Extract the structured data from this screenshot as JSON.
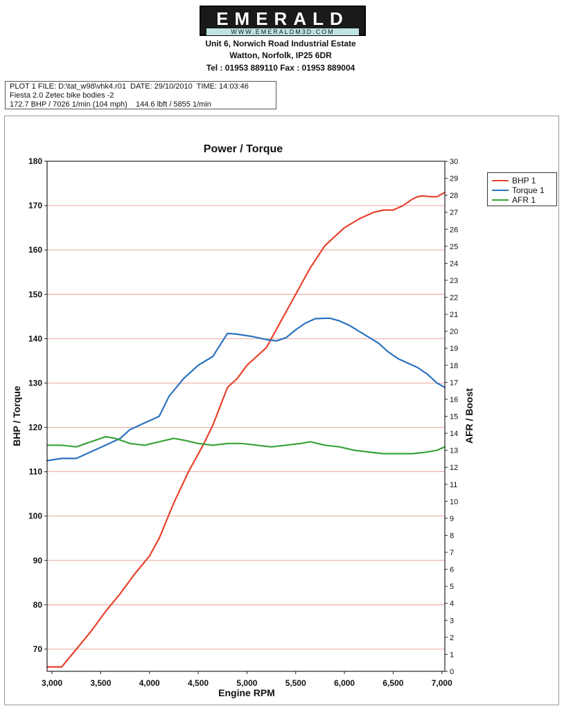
{
  "header": {
    "logo_name": "EMERALD",
    "logo_url": "WWW.EMERALDM3D.COM",
    "address_line1": "Unit 6, Norwich Road Industrial Estate",
    "address_line2": "Watton, Norfolk, IP25 6DR",
    "address_line3": "Tel : 01953 889110   Fax : 01953 889004"
  },
  "plot_info": {
    "line1": "PLOT 1 FILE: D:\\tat_w98\\vhk4.r01  DATE: 29/10/2010  TIME: 14:03:46",
    "line2": "Fiesta 2.0 Zetec bike bodies -2",
    "line3": "172.7 BHP / 7026 1/min (104 mph)    144.6 lbft / 5855 1/min"
  },
  "chart_data": {
    "type": "line",
    "title": "Power / Torque",
    "xlabel": "Engine RPM",
    "ylabel": "BHP / Torque",
    "y2label": "AFR / Boost",
    "xlim": [
      2950,
      7030
    ],
    "ylim": [
      65,
      180
    ],
    "y2lim": [
      0,
      30
    ],
    "xticks": [
      "3,000",
      "3,500",
      "4,000",
      "4,500",
      "5,000",
      "5,500",
      "6,000",
      "6,500",
      "7,000"
    ],
    "xtick_values": [
      3000,
      3500,
      4000,
      4500,
      5000,
      5500,
      6000,
      6500,
      7000
    ],
    "yticks": [
      70,
      80,
      90,
      100,
      110,
      120,
      130,
      140,
      150,
      160,
      170,
      180
    ],
    "y2ticks": [
      0,
      1,
      2,
      3,
      4,
      5,
      6,
      7,
      8,
      9,
      10,
      11,
      12,
      13,
      14,
      15,
      16,
      17,
      18,
      19,
      20,
      21,
      22,
      23,
      24,
      25,
      26,
      27,
      28,
      29,
      30
    ],
    "grid": "horizontal",
    "legend_position": "outside-right-top",
    "series": [
      {
        "name": "BHP 1",
        "color": "#e8412c",
        "axis": "left",
        "x": [
          2950,
          3100,
          3250,
          3400,
          3550,
          3700,
          3850,
          4000,
          4100,
          4250,
          4400,
          4550,
          4650,
          4800,
          4900,
          5000,
          5200,
          5350,
          5450,
          5550,
          5650,
          5800,
          5900,
          6000,
          6150,
          6300,
          6400,
          6500,
          6600,
          6700,
          6750,
          6800,
          6900,
          6950,
          7030
        ],
        "values": [
          66,
          66,
          70,
          74,
          78.5,
          82.5,
          87,
          91,
          95,
          103,
          110,
          116,
          120.5,
          129,
          131,
          134,
          138,
          144,
          148,
          152,
          156,
          161,
          163,
          165,
          167,
          168.5,
          169,
          169,
          170,
          171.5,
          172,
          172.2,
          172,
          172,
          173
        ]
      },
      {
        "name": "Torque 1",
        "color": "#2a72bf",
        "axis": "left",
        "x": [
          2950,
          3100,
          3250,
          3400,
          3550,
          3700,
          3800,
          3950,
          4100,
          4200,
          4350,
          4500,
          4650,
          4800,
          4900,
          5050,
          5200,
          5300,
          5400,
          5500,
          5600,
          5700,
          5800,
          5855,
          5950,
          6050,
          6200,
          6350,
          6450,
          6550,
          6650,
          6750,
          6850,
          6950,
          7030
        ],
        "values": [
          112.5,
          113,
          113,
          114.5,
          116,
          117.5,
          119.5,
          121,
          122.5,
          127,
          131,
          134,
          136,
          141.2,
          141,
          140.5,
          139.8,
          139.5,
          140.2,
          142,
          143.5,
          144.5,
          144.6,
          144.6,
          144,
          143,
          141,
          139,
          137,
          135.5,
          134.5,
          133.5,
          132,
          130,
          129
        ]
      },
      {
        "name": "AFR 1",
        "color": "#36a437",
        "axis": "right",
        "x": [
          2950,
          3100,
          3250,
          3400,
          3550,
          3650,
          3800,
          3950,
          4100,
          4250,
          4350,
          4500,
          4650,
          4800,
          4950,
          5100,
          5250,
          5400,
          5550,
          5650,
          5800,
          5950,
          6100,
          6250,
          6400,
          6550,
          6700,
          6850,
          6950,
          7030
        ],
        "values": [
          13.3,
          13.3,
          13.2,
          13.5,
          13.8,
          13.7,
          13.4,
          13.3,
          13.5,
          13.7,
          13.6,
          13.4,
          13.3,
          13.4,
          13.4,
          13.3,
          13.2,
          13.3,
          13.4,
          13.5,
          13.3,
          13.2,
          13.0,
          12.9,
          12.8,
          12.8,
          12.8,
          12.9,
          13.0,
          13.2
        ]
      }
    ]
  }
}
